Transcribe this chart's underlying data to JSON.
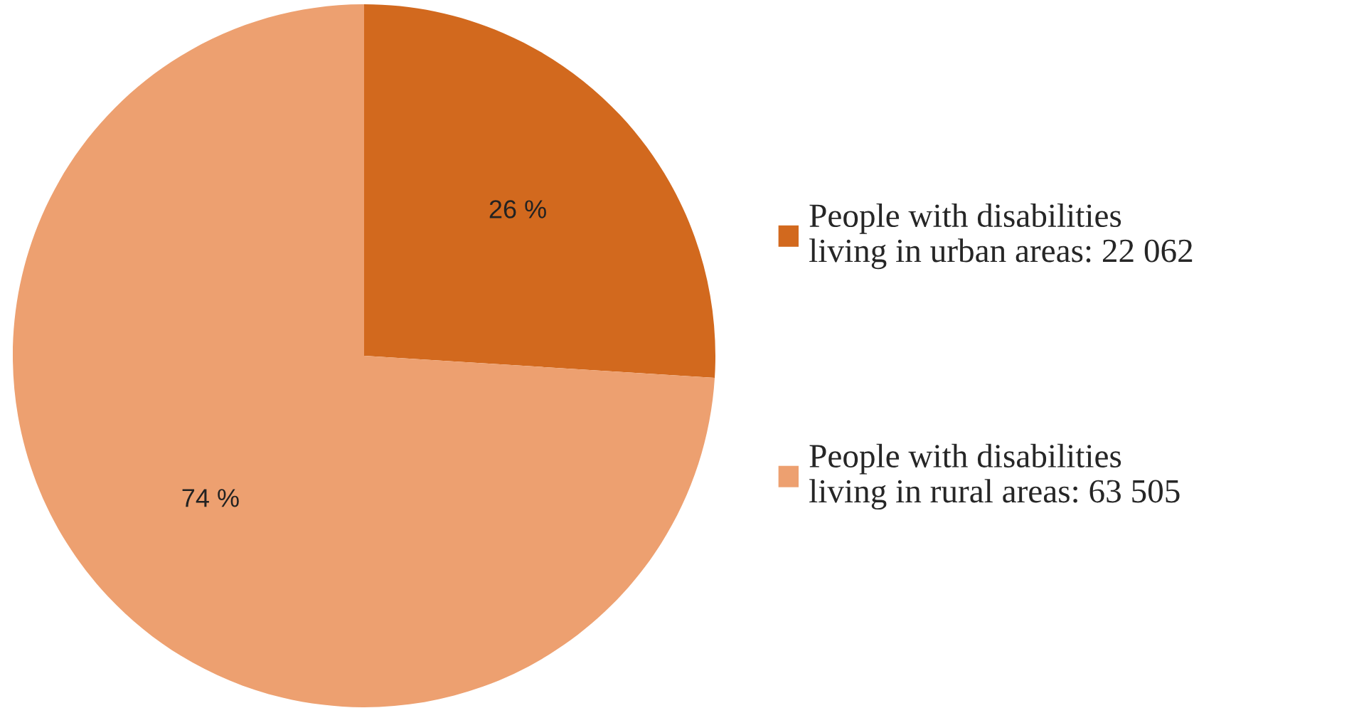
{
  "chart_data": {
    "type": "pie",
    "categories": [
      "People with disabilities\nliving in urban areas: 22 062",
      "People with disabilities\nliving in rural areas: 63 505"
    ],
    "values": [
      26,
      74
    ],
    "value_labels": [
      "26 %",
      "74 %"
    ],
    "colors": [
      "#d2691e",
      "#eda070"
    ],
    "legend": "right"
  }
}
